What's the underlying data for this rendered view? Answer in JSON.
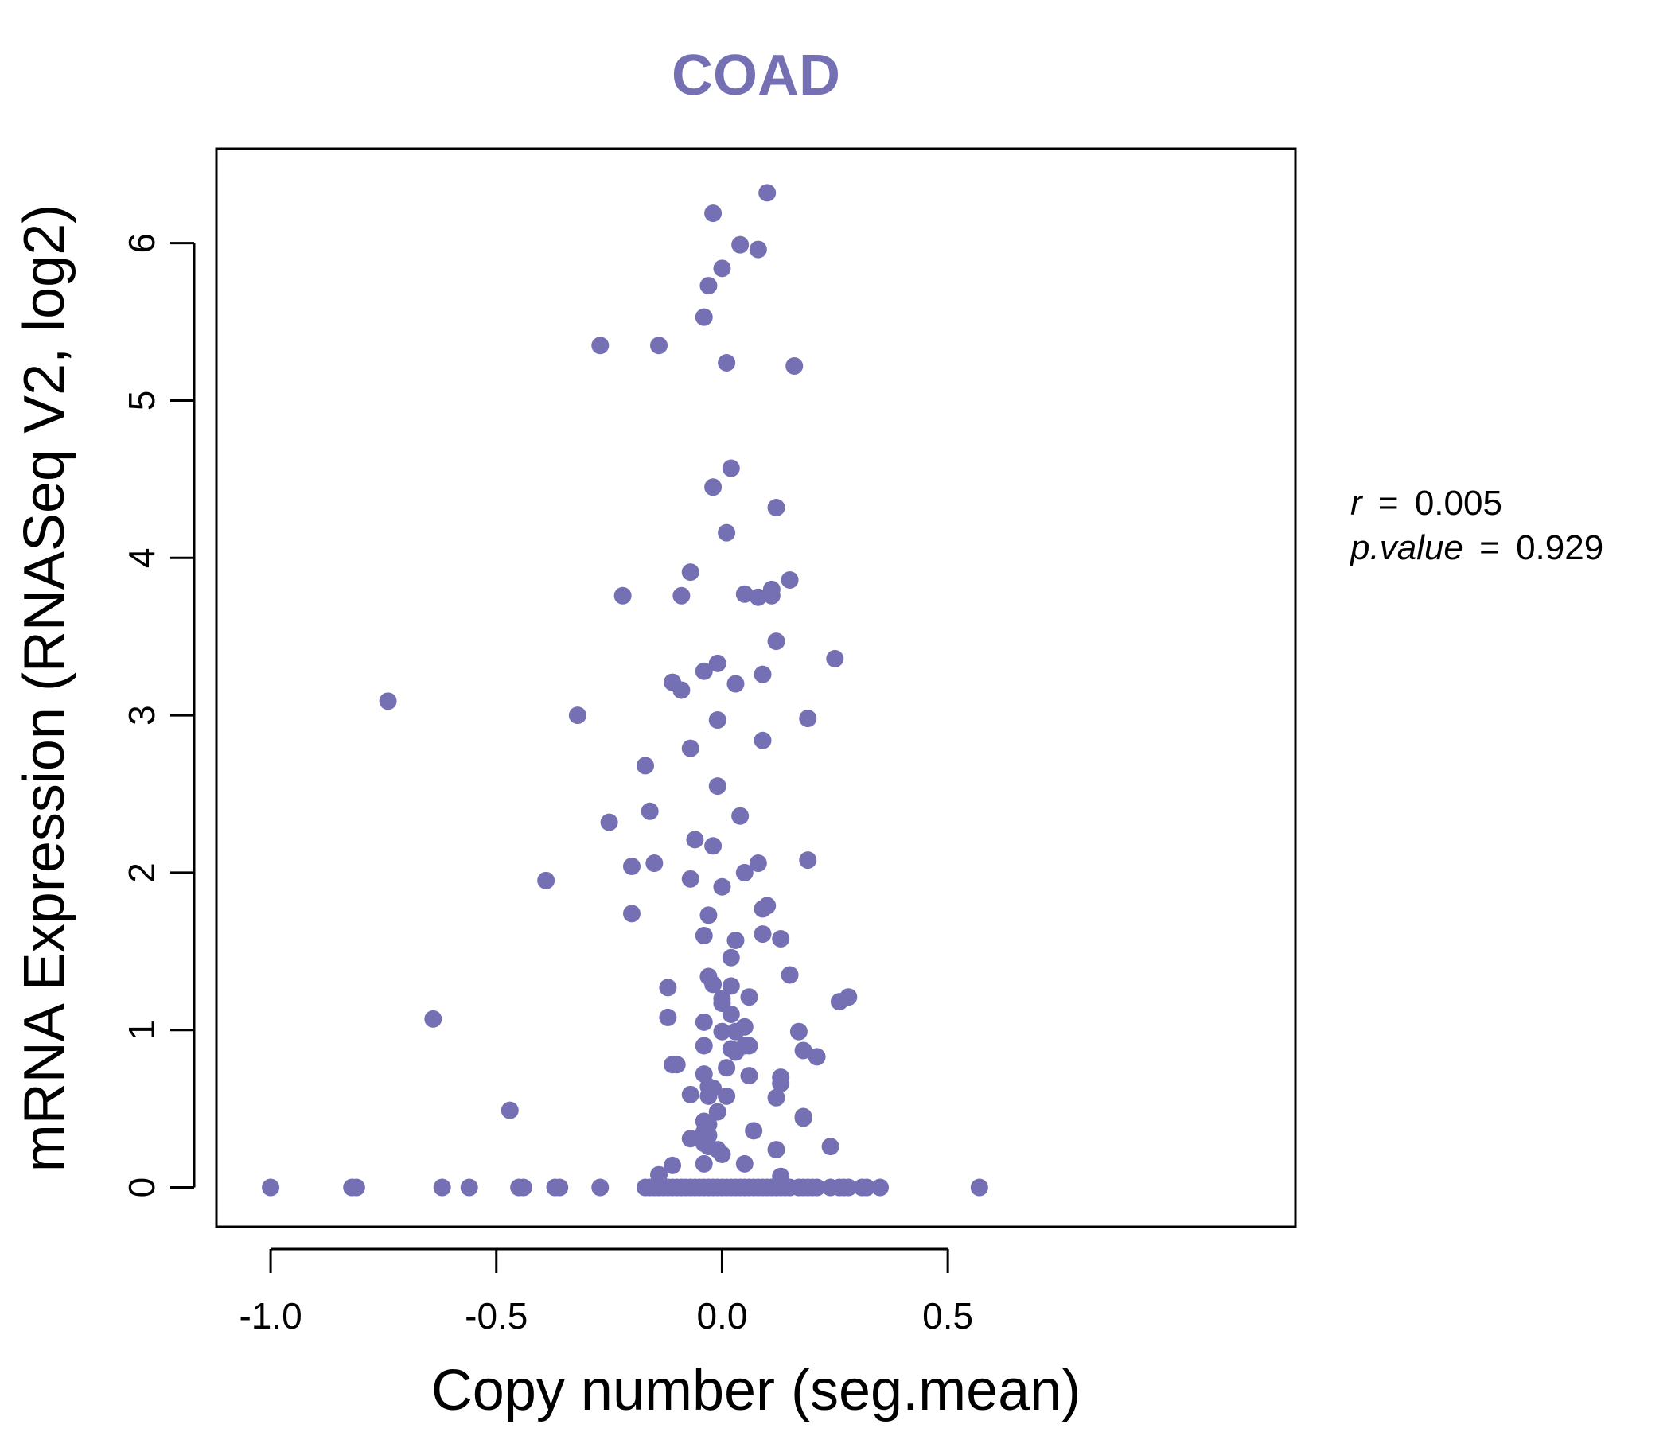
{
  "chart_data": {
    "type": "scatter",
    "title": "COAD",
    "xlabel": "Copy number (seg.mean)",
    "ylabel": "mRNA Expression (RNASeq V2, log2)",
    "xlim": [
      -1.12,
      1.27
    ],
    "ylim": [
      -0.25,
      6.6
    ],
    "xticks": [
      -1.0,
      -0.5,
      0.0,
      0.5
    ],
    "xtick_labels": [
      "-1.0",
      "-0.5",
      "0.0",
      "0.5"
    ],
    "yticks": [
      0,
      1,
      2,
      3,
      4,
      5,
      6
    ],
    "ytick_labels": [
      "0",
      "1",
      "2",
      "3",
      "4",
      "5",
      "6"
    ],
    "grid": false,
    "point_color": "#7570b3",
    "points": [
      [
        0.1,
        6.32
      ],
      [
        -0.02,
        6.19
      ],
      [
        0.04,
        5.99
      ],
      [
        0.08,
        5.96
      ],
      [
        0.0,
        5.84
      ],
      [
        -0.03,
        5.73
      ],
      [
        -0.04,
        5.53
      ],
      [
        -0.27,
        5.35
      ],
      [
        -0.14,
        5.35
      ],
      [
        0.01,
        5.24
      ],
      [
        0.16,
        5.22
      ],
      [
        0.02,
        4.57
      ],
      [
        -0.02,
        4.45
      ],
      [
        0.12,
        4.32
      ],
      [
        0.01,
        4.16
      ],
      [
        -0.07,
        3.91
      ],
      [
        0.15,
        3.86
      ],
      [
        -0.22,
        3.76
      ],
      [
        -0.09,
        3.76
      ],
      [
        0.05,
        3.77
      ],
      [
        0.08,
        3.75
      ],
      [
        0.11,
        3.8
      ],
      [
        0.11,
        3.76
      ],
      [
        0.12,
        3.47
      ],
      [
        0.25,
        3.36
      ],
      [
        -0.04,
        3.28
      ],
      [
        -0.01,
        3.33
      ],
      [
        0.09,
        3.26
      ],
      [
        -0.11,
        3.21
      ],
      [
        -0.09,
        3.16
      ],
      [
        0.03,
        3.2
      ],
      [
        -0.74,
        3.09
      ],
      [
        -0.32,
        3.0
      ],
      [
        -0.01,
        2.97
      ],
      [
        0.19,
        2.98
      ],
      [
        -0.07,
        2.79
      ],
      [
        0.09,
        2.84
      ],
      [
        -0.17,
        2.68
      ],
      [
        -0.01,
        2.55
      ],
      [
        -0.16,
        2.39
      ],
      [
        0.04,
        2.36
      ],
      [
        -0.25,
        2.32
      ],
      [
        -0.06,
        2.21
      ],
      [
        -0.02,
        2.17
      ],
      [
        -0.2,
        2.04
      ],
      [
        -0.15,
        2.06
      ],
      [
        0.19,
        2.08
      ],
      [
        0.08,
        2.06
      ],
      [
        0.05,
        2.0
      ],
      [
        -0.39,
        1.95
      ],
      [
        -0.07,
        1.96
      ],
      [
        0.0,
        1.91
      ],
      [
        -0.2,
        1.74
      ],
      [
        -0.03,
        1.73
      ],
      [
        0.09,
        1.77
      ],
      [
        0.1,
        1.79
      ],
      [
        -0.04,
        1.6
      ],
      [
        0.09,
        1.61
      ],
      [
        0.13,
        1.58
      ],
      [
        0.03,
        1.57
      ],
      [
        0.02,
        1.46
      ],
      [
        0.15,
        1.35
      ],
      [
        -0.03,
        1.34
      ],
      [
        -0.02,
        1.29
      ],
      [
        0.02,
        1.28
      ],
      [
        -0.12,
        1.27
      ],
      [
        0.06,
        1.21
      ],
      [
        0.26,
        1.18
      ],
      [
        0.28,
        1.21
      ],
      [
        0.0,
        1.2
      ],
      [
        0.0,
        1.17
      ],
      [
        0.02,
        1.1
      ],
      [
        -0.12,
        1.08
      ],
      [
        -0.64,
        1.07
      ],
      [
        -0.04,
        1.05
      ],
      [
        0.05,
        1.02
      ],
      [
        0.03,
        0.99
      ],
      [
        0.0,
        0.99
      ],
      [
        0.17,
        0.99
      ],
      [
        -0.04,
        0.9
      ],
      [
        0.05,
        0.9
      ],
      [
        0.06,
        0.9
      ],
      [
        0.02,
        0.88
      ],
      [
        0.03,
        0.86
      ],
      [
        0.18,
        0.87
      ],
      [
        0.21,
        0.83
      ],
      [
        -0.1,
        0.78
      ],
      [
        -0.11,
        0.78
      ],
      [
        0.01,
        0.76
      ],
      [
        -0.04,
        0.72
      ],
      [
        0.06,
        0.71
      ],
      [
        0.13,
        0.7
      ],
      [
        0.13,
        0.66
      ],
      [
        -0.03,
        0.64
      ],
      [
        -0.02,
        0.63
      ],
      [
        -0.07,
        0.59
      ],
      [
        -0.03,
        0.58
      ],
      [
        0.01,
        0.58
      ],
      [
        0.12,
        0.57
      ],
      [
        -0.47,
        0.49
      ],
      [
        -0.01,
        0.48
      ],
      [
        0.18,
        0.44
      ],
      [
        0.18,
        0.45
      ],
      [
        -0.04,
        0.42
      ],
      [
        -0.03,
        0.4
      ],
      [
        0.07,
        0.36
      ],
      [
        -0.04,
        0.35
      ],
      [
        -0.03,
        0.33
      ],
      [
        -0.07,
        0.31
      ],
      [
        -0.04,
        0.28
      ],
      [
        -0.03,
        0.26
      ],
      [
        0.24,
        0.26
      ],
      [
        -0.01,
        0.24
      ],
      [
        0.12,
        0.24
      ],
      [
        0.0,
        0.21
      ],
      [
        -0.04,
        0.15
      ],
      [
        0.05,
        0.15
      ],
      [
        -0.11,
        0.14
      ],
      [
        -0.14,
        0.08
      ],
      [
        0.13,
        0.07
      ],
      [
        -1.0,
        0.0
      ],
      [
        -0.82,
        0.0
      ],
      [
        -0.81,
        0.0
      ],
      [
        -0.62,
        0.0
      ],
      [
        -0.56,
        0.0
      ],
      [
        -0.45,
        0.0
      ],
      [
        -0.44,
        0.0
      ],
      [
        -0.37,
        0.0
      ],
      [
        -0.36,
        0.0
      ],
      [
        -0.27,
        0.0
      ],
      [
        -0.17,
        0.0
      ],
      [
        -0.16,
        0.0
      ],
      [
        -0.15,
        0.0
      ],
      [
        -0.14,
        0.0
      ],
      [
        -0.13,
        0.0
      ],
      [
        -0.12,
        0.0
      ],
      [
        -0.11,
        0.0
      ],
      [
        -0.1,
        0.0
      ],
      [
        -0.09,
        0.0
      ],
      [
        -0.08,
        0.0
      ],
      [
        -0.07,
        0.0
      ],
      [
        -0.06,
        0.0
      ],
      [
        -0.05,
        0.0
      ],
      [
        -0.04,
        0.0
      ],
      [
        -0.03,
        0.0
      ],
      [
        -0.02,
        0.0
      ],
      [
        -0.01,
        0.0
      ],
      [
        0.0,
        0.0
      ],
      [
        0.01,
        0.0
      ],
      [
        0.02,
        0.0
      ],
      [
        0.03,
        0.0
      ],
      [
        0.04,
        0.0
      ],
      [
        0.05,
        0.0
      ],
      [
        0.06,
        0.0
      ],
      [
        0.07,
        0.0
      ],
      [
        0.08,
        0.0
      ],
      [
        0.09,
        0.0
      ],
      [
        0.1,
        0.0
      ],
      [
        0.11,
        0.0
      ],
      [
        0.12,
        0.0
      ],
      [
        0.13,
        0.0
      ],
      [
        0.14,
        0.0
      ],
      [
        0.15,
        0.0
      ],
      [
        0.17,
        0.0
      ],
      [
        0.18,
        0.0
      ],
      [
        0.19,
        0.0
      ],
      [
        0.2,
        0.0
      ],
      [
        0.21,
        0.0
      ],
      [
        0.24,
        0.0
      ],
      [
        0.26,
        0.0
      ],
      [
        0.27,
        0.0
      ],
      [
        0.28,
        0.0
      ],
      [
        0.31,
        0.0
      ],
      [
        0.32,
        0.0
      ],
      [
        0.35,
        0.0
      ],
      [
        0.57,
        0.0
      ]
    ],
    "annotations": {
      "r_label": "r",
      "r_value": "0.005",
      "p_label": "p.value",
      "p_value": "0.929",
      "equals": "="
    }
  }
}
